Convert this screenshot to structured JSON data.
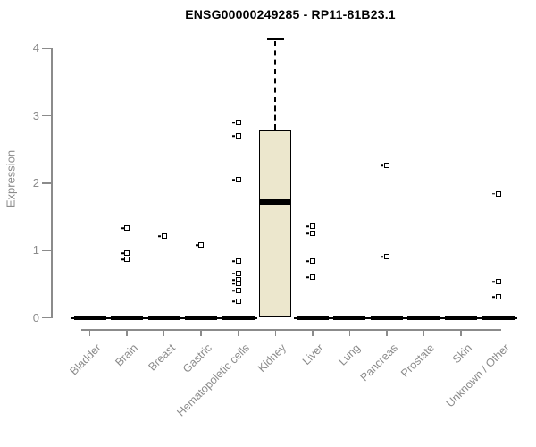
{
  "chart_data": {
    "type": "boxplot",
    "title": "ENSG00000249285 - RP11-81B23.1",
    "ylabel": "Expression",
    "xlabel": "",
    "ylim": [
      0,
      4
    ],
    "yticks": [
      0,
      1,
      2,
      3,
      4
    ],
    "grid": false,
    "legend": "none",
    "categories": [
      "Bladder",
      "Brain",
      "Breast",
      "Gastric",
      "Hematopoietic cells",
      "Kidney",
      "Liver",
      "Lung",
      "Pancreas",
      "Prostate",
      "Skin",
      "Unknown / Other"
    ],
    "boxes": [
      {
        "category": "Bladder",
        "q1": 0,
        "median": 0,
        "q3": 0,
        "whisker_low": 0,
        "whisker_high": 0,
        "outliers": []
      },
      {
        "category": "Brain",
        "q1": 0,
        "median": 0,
        "q3": 0,
        "whisker_low": 0,
        "whisker_high": 0,
        "outliers": [
          1.33,
          0.96,
          0.87
        ]
      },
      {
        "category": "Breast",
        "q1": 0,
        "median": 0,
        "q3": 0,
        "whisker_low": 0,
        "whisker_high": 0,
        "outliers": [
          1.21
        ]
      },
      {
        "category": "Gastric",
        "q1": 0,
        "median": 0,
        "q3": 0,
        "whisker_low": 0,
        "whisker_high": 0,
        "outliers": [
          1.08
        ]
      },
      {
        "category": "Hematopoietic cells",
        "q1": 0,
        "median": 0,
        "q3": 0,
        "whisker_low": 0,
        "whisker_high": 0,
        "outliers": [
          2.9,
          2.7,
          2.05,
          0.84,
          0.66,
          0.56,
          0.51,
          0.4,
          0.24
        ]
      },
      {
        "category": "Kidney",
        "q1": 0,
        "median": 1.72,
        "q3": 2.79,
        "whisker_low": 0,
        "whisker_high": 4.14,
        "outliers": []
      },
      {
        "category": "Liver",
        "q1": 0,
        "median": 0,
        "q3": 0,
        "whisker_low": 0,
        "whisker_high": 0,
        "outliers": [
          1.36,
          1.25,
          0.84,
          0.6
        ]
      },
      {
        "category": "Lung",
        "q1": 0,
        "median": 0,
        "q3": 0,
        "whisker_low": 0,
        "whisker_high": 0,
        "outliers": []
      },
      {
        "category": "Pancreas",
        "q1": 0,
        "median": 0,
        "q3": 0,
        "whisker_low": 0,
        "whisker_high": 0,
        "outliers": [
          2.26,
          0.91
        ]
      },
      {
        "category": "Prostate",
        "q1": 0,
        "median": 0,
        "q3": 0,
        "whisker_low": 0,
        "whisker_high": 0,
        "outliers": []
      },
      {
        "category": "Skin",
        "q1": 0,
        "median": 0,
        "q3": 0,
        "whisker_low": 0,
        "whisker_high": 0,
        "outliers": []
      },
      {
        "category": "Unknown / Other",
        "q1": 0,
        "median": 0,
        "q3": 0,
        "whisker_low": 0,
        "whisker_high": 0,
        "outliers": [
          1.84,
          0.54,
          0.31
        ]
      }
    ],
    "colors": {
      "box_fill": "#ECE7CD",
      "box_border": "#000000",
      "median": "#000000",
      "outlier": "#000000",
      "axis": "#8b8b8b",
      "title": "#000000",
      "background": "#ffffff"
    }
  }
}
